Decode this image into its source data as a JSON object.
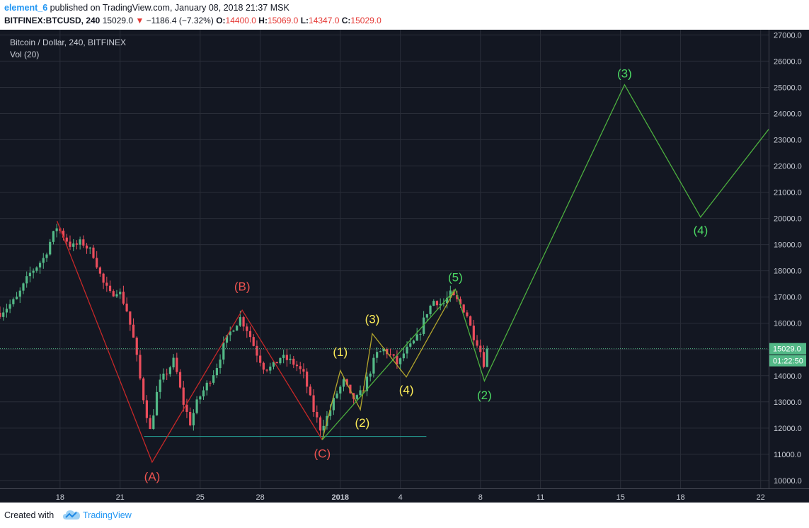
{
  "header": {
    "author": "element_6",
    "published": " published on TradingView.com, January 08, 2018 21:37 MSK",
    "symbol": "BITFINEX:BTCUSD, 240",
    "last": "15029.0",
    "change": "−1186.4 (−7.32%)",
    "o_label": "O:",
    "o_value": "14400.0",
    "h_label": "H:",
    "h_value": "15069.0",
    "l_label": "L:",
    "l_value": "14347.0",
    "c_label": "C:",
    "c_value": "15029.0"
  },
  "legend": {
    "title": "Bitcoin / Dollar, 240, BITFINEX",
    "volume": "Vol (20)"
  },
  "footer": {
    "created_with": "Created with",
    "brand": "TradingView"
  },
  "colors": {
    "background": "#131722",
    "up_candle": "#53b987",
    "down_candle": "#eb4d5c",
    "wave_red": "#c62828",
    "wave_green": "#4caf3f",
    "wave_olive": "#b1a42c",
    "label_red": "#ef5350",
    "label_green": "#4cd964",
    "label_yellow": "#ffee58",
    "support_line": "#26a69a"
  },
  "chart_data": {
    "type": "candlestick",
    "title": "Bitcoin / Dollar, 240, BITFINEX",
    "ylim": [
      9700,
      27200
    ],
    "grid": true,
    "y_ticks": [
      10000,
      11000,
      12000,
      13000,
      14000,
      15000,
      16000,
      17000,
      18000,
      19000,
      20000,
      21000,
      22000,
      23000,
      24000,
      25000,
      26000,
      27000
    ],
    "y_tick_labels": [
      "10000.0",
      "11000.0",
      "12000.0",
      "13000.0",
      "14000.0",
      "15000.0",
      "16000.0",
      "17000.0",
      "18000.0",
      "19000.0",
      "20000.0",
      "21000.0",
      "22000.0",
      "23000.0",
      "24000.0",
      "25000.0",
      "26000.0",
      "27000.0"
    ],
    "x_ticks": [
      {
        "day": 18,
        "label": "18"
      },
      {
        "day": 21,
        "label": "21"
      },
      {
        "day": 25,
        "label": "25"
      },
      {
        "day": 28,
        "label": "28"
      },
      {
        "day": 32,
        "label": "2018"
      },
      {
        "day": 35,
        "label": "4"
      },
      {
        "day": 39,
        "label": "8"
      },
      {
        "day": 42,
        "label": "11"
      },
      {
        "day": 46,
        "label": "15"
      },
      {
        "day": 49,
        "label": "18"
      },
      {
        "day": 53,
        "label": "22"
      }
    ],
    "x_range_days": [
      15.0,
      53.4
    ],
    "price_anchors": [
      [
        15.0,
        16400
      ],
      [
        15.8,
        16900
      ],
      [
        16.5,
        17900
      ],
      [
        17.2,
        18500
      ],
      [
        17.5,
        19100
      ],
      [
        17.85,
        19700
      ],
      [
        18.2,
        19300
      ],
      [
        18.6,
        18900
      ],
      [
        19.1,
        19100
      ],
      [
        19.7,
        18600
      ],
      [
        20.1,
        17600
      ],
      [
        20.5,
        17100
      ],
      [
        20.9,
        17300
      ],
      [
        21.3,
        16600
      ],
      [
        21.7,
        15300
      ],
      [
        22.1,
        13400
      ],
      [
        22.5,
        11900
      ],
      [
        22.9,
        13600
      ],
      [
        23.3,
        14100
      ],
      [
        23.7,
        14600
      ],
      [
        24.1,
        13100
      ],
      [
        24.5,
        12200
      ],
      [
        24.9,
        13100
      ],
      [
        25.3,
        13600
      ],
      [
        25.8,
        14300
      ],
      [
        26.2,
        15200
      ],
      [
        26.6,
        15800
      ],
      [
        27.0,
        16200
      ],
      [
        27.4,
        15700
      ],
      [
        27.8,
        14900
      ],
      [
        28.2,
        14300
      ],
      [
        28.6,
        14300
      ],
      [
        29.0,
        14700
      ],
      [
        29.4,
        14600
      ],
      [
        29.8,
        14400
      ],
      [
        30.2,
        14000
      ],
      [
        30.6,
        12800
      ],
      [
        31.0,
        12000
      ],
      [
        31.4,
        12500
      ],
      [
        31.8,
        13300
      ],
      [
        32.2,
        13800
      ],
      [
        32.5,
        13200
      ],
      [
        32.8,
        13100
      ],
      [
        33.1,
        13400
      ],
      [
        33.5,
        14200
      ],
      [
        33.8,
        14800
      ],
      [
        34.2,
        15000
      ],
      [
        34.6,
        14700
      ],
      [
        34.9,
        14400
      ],
      [
        35.2,
        14900
      ],
      [
        35.5,
        15100
      ],
      [
        35.9,
        15500
      ],
      [
        36.3,
        16400
      ],
      [
        36.7,
        16900
      ],
      [
        37.1,
        16700
      ],
      [
        37.5,
        17100
      ],
      [
        37.9,
        16800
      ],
      [
        38.3,
        16400
      ],
      [
        38.6,
        15600
      ],
      [
        38.9,
        15200
      ],
      [
        39.2,
        14400
      ],
      [
        39.4,
        15029
      ]
    ],
    "current_price": 15029.0,
    "current_price_label": "15029.0",
    "countdown": "01:22:50",
    "support_line": {
      "x1": 22.2,
      "x2": 36.3,
      "y": 11680
    },
    "waves": [
      {
        "name": "red ABC",
        "color": "wave_red",
        "points": [
          [
            17.85,
            19900
          ],
          [
            22.6,
            10700
          ],
          [
            27.1,
            16500
          ],
          [
            31.1,
            11550
          ]
        ]
      },
      {
        "name": "olive 12345",
        "color": "wave_olive",
        "points": [
          [
            31.1,
            11550
          ],
          [
            32.0,
            14200
          ],
          [
            33.0,
            12700
          ],
          [
            33.6,
            15600
          ],
          [
            35.3,
            13950
          ],
          [
            37.75,
            17300
          ]
        ]
      },
      {
        "name": "green projection",
        "color": "wave_green",
        "points": [
          [
            31.1,
            11550
          ],
          [
            37.75,
            17300
          ],
          [
            39.2,
            13800
          ],
          [
            46.2,
            25100
          ],
          [
            50.0,
            20050
          ],
          [
            53.4,
            23400
          ]
        ]
      }
    ],
    "annotations": [
      {
        "text": "(A)",
        "x": 22.6,
        "y": 10000,
        "color": "label_red"
      },
      {
        "text": "(B)",
        "x": 27.1,
        "y": 17250,
        "color": "label_red"
      },
      {
        "text": "(C)",
        "x": 31.1,
        "y": 10880,
        "color": "label_red"
      },
      {
        "text": "(1)",
        "x": 32.0,
        "y": 14750,
        "color": "label_yellow"
      },
      {
        "text": "(2)",
        "x": 33.1,
        "y": 12050,
        "color": "label_yellow"
      },
      {
        "text": "(3)",
        "x": 33.6,
        "y": 16000,
        "color": "label_yellow"
      },
      {
        "text": "(4)",
        "x": 35.3,
        "y": 13300,
        "color": "label_yellow"
      },
      {
        "text": "(5)",
        "x": 37.75,
        "y": 17600,
        "color": "label_green"
      },
      {
        "text": "(2)",
        "x": 39.2,
        "y": 13100,
        "color": "label_green"
      },
      {
        "text": "(3)",
        "x": 46.2,
        "y": 25380,
        "color": "label_green"
      },
      {
        "text": "(4)",
        "x": 50.0,
        "y": 19390,
        "color": "label_green"
      }
    ]
  }
}
